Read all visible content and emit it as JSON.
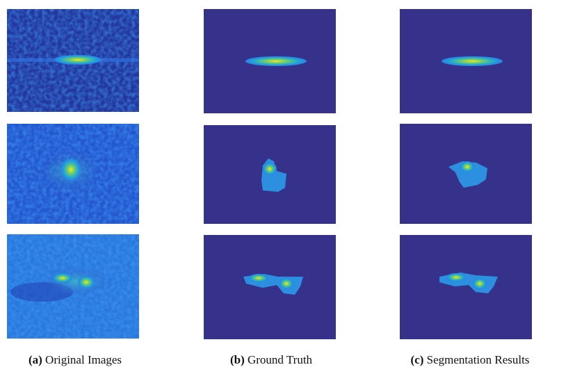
{
  "captions": [
    {
      "label": "(a)",
      "text": "Original Images"
    },
    {
      "label": "(b)",
      "text": "Ground Truth"
    },
    {
      "label": "(c)",
      "text": "Segmentation Results"
    }
  ]
}
